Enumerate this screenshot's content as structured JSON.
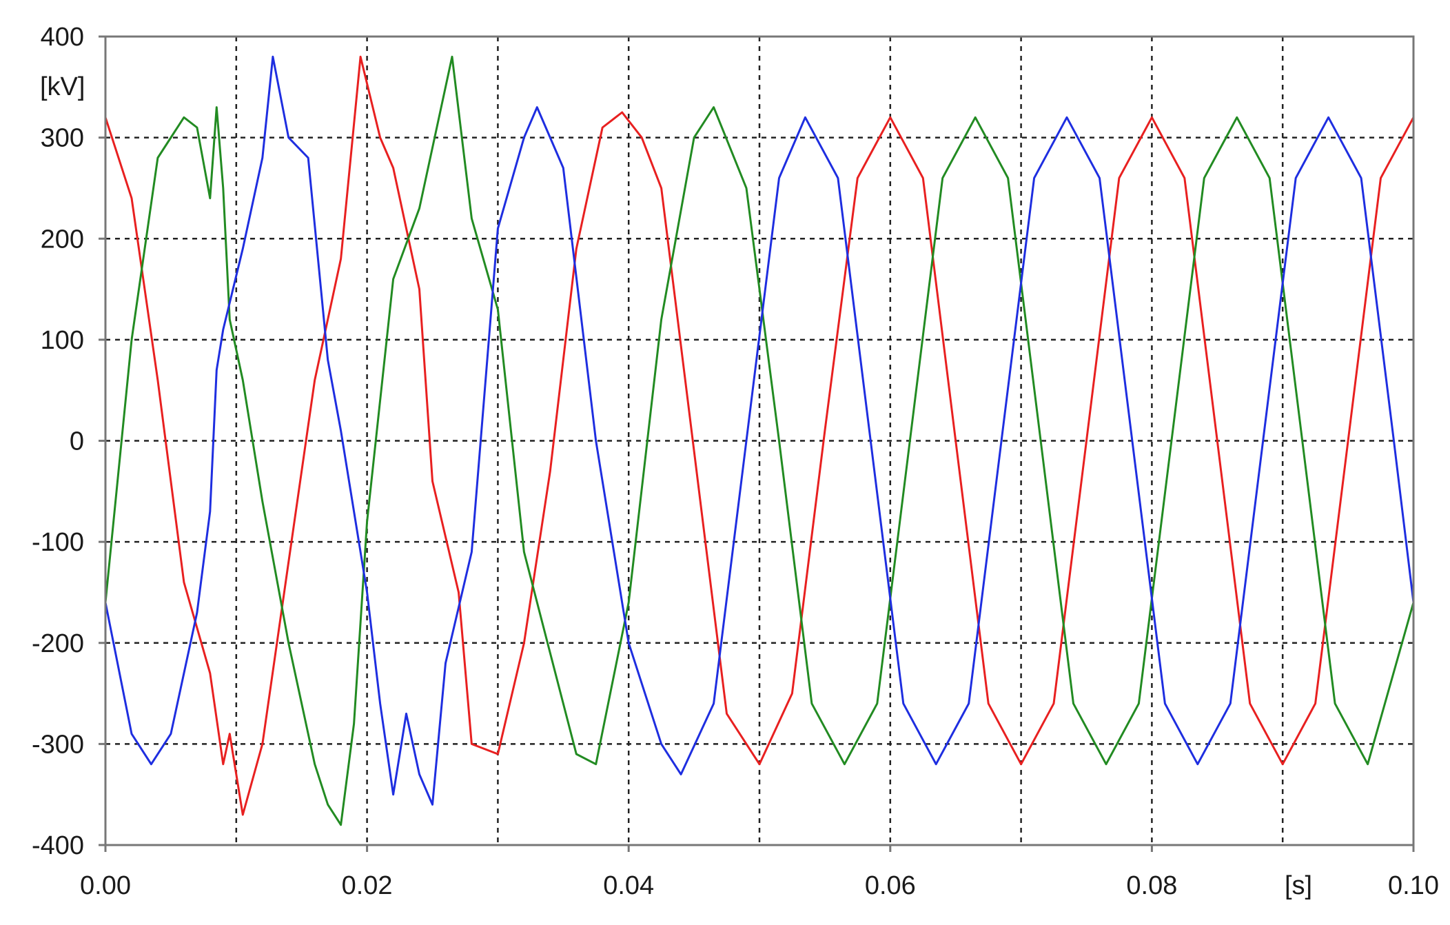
{
  "chart_data": {
    "type": "line",
    "title": "",
    "xlabel": "[s]",
    "ylabel": "[kV]",
    "xlim": [
      0.0,
      0.1
    ],
    "ylim": [
      -400,
      400
    ],
    "grid": true,
    "grid_style": "dotted",
    "legend": "none",
    "x_ticks": [
      "0.00",
      "0.02",
      "0.04",
      "0.06",
      "0.08",
      "0.10"
    ],
    "y_ticks": [
      "400",
      "300",
      "200",
      "100",
      "0",
      "-100",
      "-200",
      "-300",
      "-400"
    ],
    "series": [
      {
        "color": "#e82020",
        "x": [
          0.0,
          0.002,
          0.004,
          0.006,
          0.008,
          0.009,
          0.0095,
          0.0105,
          0.012,
          0.014,
          0.016,
          0.018,
          0.0195,
          0.021,
          0.022,
          0.024,
          0.025,
          0.027,
          0.028,
          0.03,
          0.032,
          0.034,
          0.036,
          0.038,
          0.0395,
          0.041,
          0.0425,
          0.045,
          0.0475,
          0.05,
          0.0525,
          0.055,
          0.0575,
          0.06,
          0.0625,
          0.065,
          0.0675,
          0.07,
          0.0725,
          0.075,
          0.0775,
          0.08,
          0.0825,
          0.085,
          0.0875,
          0.09,
          0.0925,
          0.095,
          0.0975,
          0.1
        ],
        "y": [
          320,
          240,
          60,
          -140,
          -230,
          -320,
          -290,
          -370,
          -300,
          -120,
          60,
          180,
          380,
          300,
          270,
          150,
          -40,
          -150,
          -300,
          -310,
          -200,
          -30,
          190,
          310,
          325,
          300,
          250,
          -10,
          -270,
          -320,
          -250,
          10,
          260,
          320,
          260,
          0,
          -260,
          -320,
          -260,
          0,
          260,
          320,
          260,
          0,
          -260,
          -320,
          -260,
          0,
          260,
          320
        ]
      },
      {
        "color": "#228b22",
        "x": [
          0.0,
          0.002,
          0.004,
          0.006,
          0.007,
          0.008,
          0.0085,
          0.009,
          0.0095,
          0.0105,
          0.012,
          0.014,
          0.016,
          0.017,
          0.018,
          0.019,
          0.02,
          0.022,
          0.024,
          0.0255,
          0.0265,
          0.028,
          0.03,
          0.032,
          0.034,
          0.036,
          0.0375,
          0.04,
          0.0425,
          0.045,
          0.0465,
          0.049,
          0.0515,
          0.054,
          0.0565,
          0.059,
          0.0615,
          0.064,
          0.0665,
          0.069,
          0.0715,
          0.074,
          0.0765,
          0.079,
          0.0815,
          0.084,
          0.0865,
          0.089,
          0.0915,
          0.094,
          0.0965,
          0.1
        ],
        "y": [
          -160,
          100,
          280,
          320,
          310,
          240,
          330,
          250,
          120,
          60,
          -60,
          -200,
          -320,
          -360,
          -380,
          -280,
          -80,
          160,
          230,
          320,
          380,
          220,
          130,
          -110,
          -210,
          -310,
          -320,
          -160,
          120,
          300,
          330,
          250,
          0,
          -260,
          -320,
          -260,
          0,
          260,
          320,
          260,
          0,
          -260,
          -320,
          -260,
          0,
          260,
          320,
          260,
          0,
          -260,
          -320,
          -160
        ]
      },
      {
        "color": "#1e2ee0",
        "x": [
          0.0,
          0.002,
          0.0035,
          0.005,
          0.007,
          0.008,
          0.0085,
          0.009,
          0.0105,
          0.012,
          0.0128,
          0.014,
          0.0155,
          0.017,
          0.018,
          0.019,
          0.02,
          0.021,
          0.022,
          0.023,
          0.024,
          0.025,
          0.026,
          0.028,
          0.03,
          0.032,
          0.033,
          0.035,
          0.0375,
          0.04,
          0.0425,
          0.044,
          0.0465,
          0.049,
          0.0515,
          0.0535,
          0.056,
          0.0585,
          0.061,
          0.0635,
          0.066,
          0.0685,
          0.071,
          0.0735,
          0.076,
          0.0785,
          0.081,
          0.0835,
          0.086,
          0.0885,
          0.091,
          0.0935,
          0.096,
          0.0985,
          0.1
        ],
        "y": [
          -160,
          -290,
          -320,
          -290,
          -170,
          -70,
          70,
          110,
          190,
          280,
          380,
          300,
          280,
          80,
          10,
          -70,
          -150,
          -260,
          -350,
          -270,
          -330,
          -360,
          -220,
          -110,
          210,
          300,
          330,
          270,
          0,
          -200,
          -300,
          -330,
          -260,
          0,
          260,
          320,
          260,
          0,
          -260,
          -320,
          -260,
          0,
          260,
          320,
          260,
          0,
          -260,
          -320,
          -260,
          0,
          260,
          320,
          260,
          0,
          -160
        ]
      }
    ]
  }
}
